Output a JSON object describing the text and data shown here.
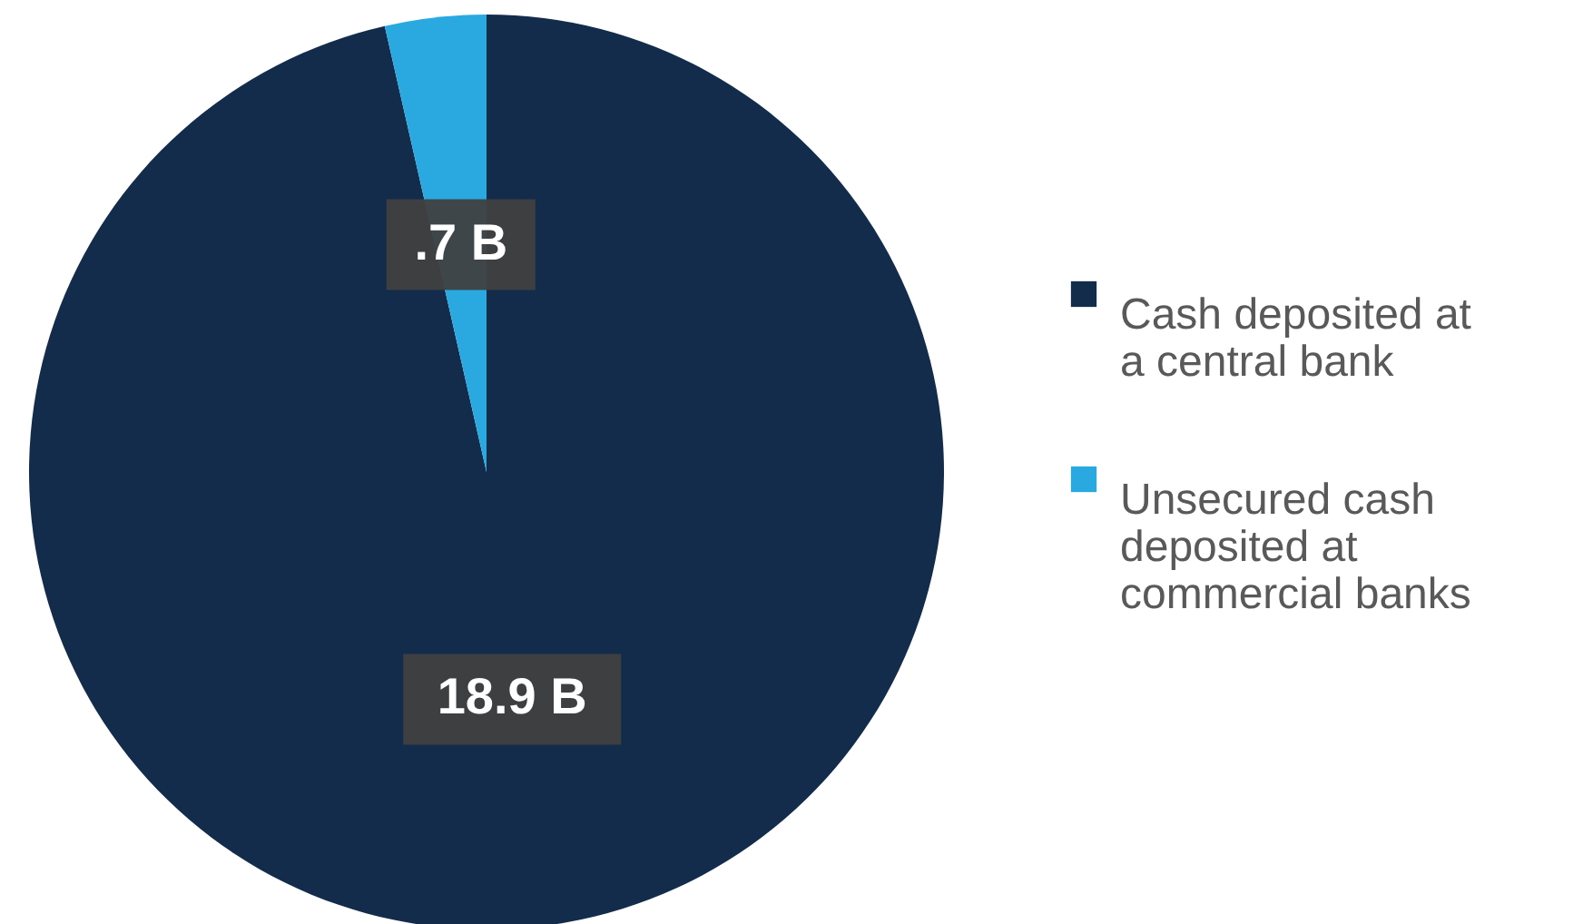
{
  "chart_data": {
    "type": "pie",
    "categories": [
      "Cash deposited at a central bank",
      "Unsecured cash deposited at commercial banks"
    ],
    "values": [
      18.9,
      0.7
    ],
    "colors": [
      "#132c4c",
      "#29a9e0"
    ],
    "value_labels": [
      "18.9 B",
      ".7 B"
    ],
    "legend": "right"
  }
}
